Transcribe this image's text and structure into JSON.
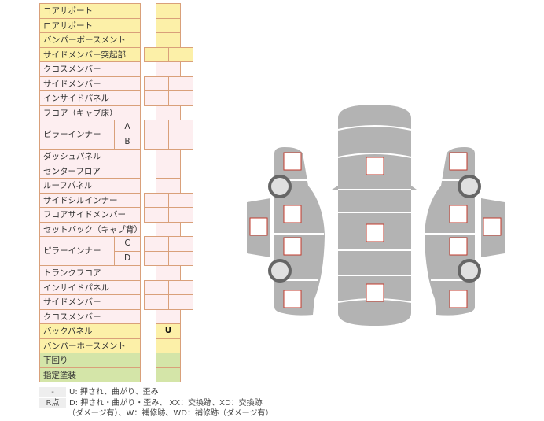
{
  "rows": [
    {
      "label": "コアサポート",
      "color": "y",
      "cells": 1
    },
    {
      "label": "ロアサポート",
      "color": "y",
      "cells": 1
    },
    {
      "label": "バンパーボースメント",
      "color": "y",
      "cells": 1
    },
    {
      "label": "サイドメンバー突起部",
      "color": "y",
      "cells": 2
    },
    {
      "label": "クロスメンバー",
      "color": "p",
      "cells": 1
    },
    {
      "label": "サイドメンバー",
      "color": "p",
      "cells": 2
    },
    {
      "label": "インサイドパネル",
      "color": "p",
      "cells": 2
    },
    {
      "label": "フロア（キャブ床）",
      "color": "p",
      "cells": 1
    },
    {
      "label": "ピラーインナー",
      "sub": "A",
      "color": "p",
      "cells": 2
    },
    {
      "sub": "B",
      "color": "p",
      "cells": 2
    },
    {
      "label": "ダッシュパネル",
      "color": "p",
      "cells": 1
    },
    {
      "label": "センターフロア",
      "color": "p",
      "cells": 1
    },
    {
      "label": "ルーフパネル",
      "color": "p",
      "cells": 1
    },
    {
      "label": "サイドシルインナー",
      "color": "p",
      "cells": 2
    },
    {
      "label": "フロアサイドメンバー",
      "color": "p",
      "cells": 2
    },
    {
      "label": "セットバック（キャブ背）",
      "color": "p",
      "cells": 1
    },
    {
      "label": "ピラーインナー",
      "sub": "C",
      "color": "p",
      "cells": 2
    },
    {
      "sub": "D",
      "color": "p",
      "cells": 2
    },
    {
      "label": "トランクフロア",
      "color": "p",
      "cells": 1
    },
    {
      "label": "インサイドパネル",
      "color": "p",
      "cells": 2
    },
    {
      "label": "サイドメンバー",
      "color": "p",
      "cells": 2
    },
    {
      "label": "クロスメンバー",
      "color": "p",
      "cells": 1
    },
    {
      "label": "バックパネル",
      "color": "y",
      "cells": 1,
      "value": "U"
    },
    {
      "label": "バンパーホースメント",
      "color": "y",
      "cells": 1
    },
    {
      "label": "下回り",
      "color": "g",
      "cells": 1
    },
    {
      "label": "指定塗装",
      "color": "g",
      "cells": 1
    }
  ],
  "legend": {
    "key1": "-",
    "text1": "U: 押され、曲がり、歪み",
    "key2": "R点",
    "text2": "D: 押され・曲がり・歪み、 XX：交換跡、XD：交換跡",
    "text3": "（ダメージ有）、W：補修跡、WD：補修跡（ダメージ有）"
  },
  "colors": {
    "yellow": "#fcf0a8",
    "pink": "#fdeef0",
    "green": "#d4e5a8",
    "border": "#d9a07a",
    "body": "#b3b3b3",
    "marker": "#c0392b"
  }
}
